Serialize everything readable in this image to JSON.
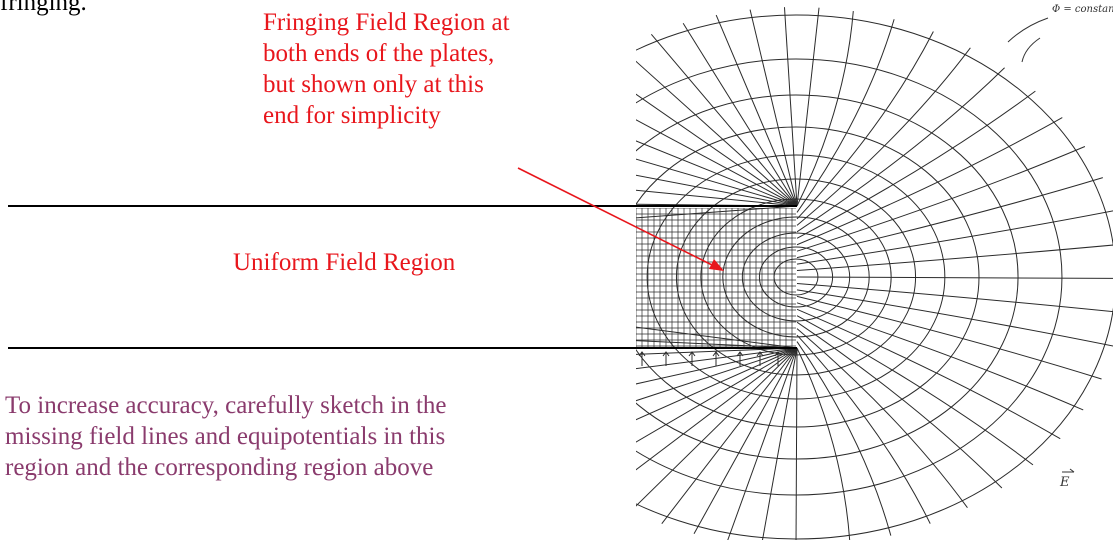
{
  "page": {
    "top_text": "fringing.",
    "fringing_label_lines": [
      "Fringing Field Region at",
      "both ends of the plates,",
      "but shown only at this",
      "end for simplicity"
    ],
    "uniform_label": "Uniform Field Region",
    "note_lines": [
      "To increase accuracy, carefully sketch in the",
      "missing field lines and equipotentials in this",
      "region and the corresponding region above"
    ],
    "handwritten_label": "Φ = constant",
    "field_symbol": "E"
  },
  "colors": {
    "label_red": "#e8161c",
    "note_purple": "#8a3b6d",
    "sketch_lines": "#2b2b2b",
    "plates": "#000000"
  }
}
